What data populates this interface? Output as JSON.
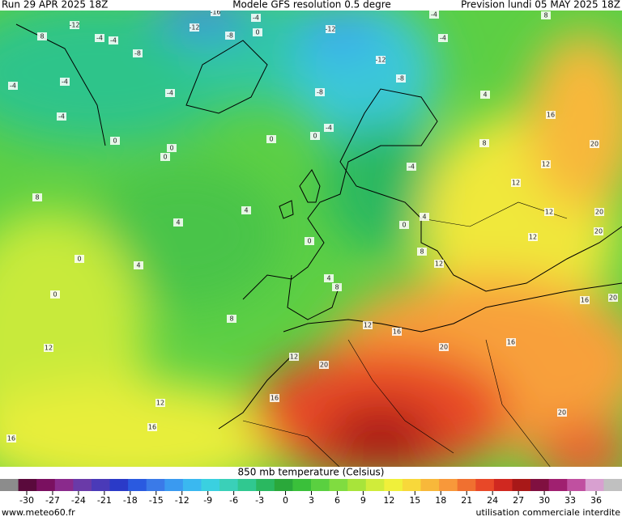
{
  "header": {
    "left": "Run 29 APR 2025 18Z",
    "center": "Modele GFS resolution 0.5 degre",
    "right": "Prevision lundi 05 MAY 2025 18Z"
  },
  "colorbar": {
    "title": "850 mb temperature (Celsius)",
    "ticks": [
      -30,
      -27,
      -24,
      -21,
      -18,
      -15,
      -12,
      -9,
      -6,
      -3,
      0,
      3,
      6,
      9,
      12,
      15,
      18,
      21,
      24,
      27,
      30,
      33,
      36
    ],
    "colors": [
      "#8c8c8c",
      "#5a0a3c",
      "#7a1060",
      "#8a2a8c",
      "#6a3aa8",
      "#4a3ab8",
      "#2a3ac8",
      "#2a5ae0",
      "#3a7ae8",
      "#3a9af0",
      "#3ab8f0",
      "#3ad0e0",
      "#3ad0b8",
      "#30c890",
      "#2ab860",
      "#2aa83a",
      "#3ac03a",
      "#5ad040",
      "#80dc40",
      "#a8e43a",
      "#d0ec3a",
      "#f0f03a",
      "#f8d83a",
      "#f8b83a",
      "#f8983a",
      "#f07030",
      "#e84828",
      "#d02820",
      "#a81818",
      "#801040",
      "#a02070",
      "#c050a0",
      "#d8a0d0",
      "#c0c0c0"
    ]
  },
  "footer": {
    "left": "www.meteo60.fr",
    "right": "utilisation commerciale interdite"
  },
  "contour_labels": [
    "-16",
    "-4",
    "-12",
    "-12",
    "8",
    "-4",
    "-4",
    "-8",
    "-8",
    "0",
    "-12",
    "-4",
    "-4",
    "-12",
    "-8",
    "-4",
    "-4",
    "-4",
    "-8",
    "-4",
    "-4",
    "0",
    "0",
    "0",
    "0",
    "0",
    "8",
    "4",
    "4",
    "0",
    "4",
    "0",
    "8",
    "-4",
    "0",
    "4",
    "8",
    "12",
    "0",
    "4",
    "8",
    "4",
    "8",
    "16",
    "12",
    "12",
    "12",
    "12",
    "20",
    "20",
    "20",
    "16",
    "20",
    "12",
    "16",
    "20",
    "16",
    "12",
    "20",
    "12",
    "12",
    "16",
    "16",
    "20",
    "16",
    "8"
  ]
}
